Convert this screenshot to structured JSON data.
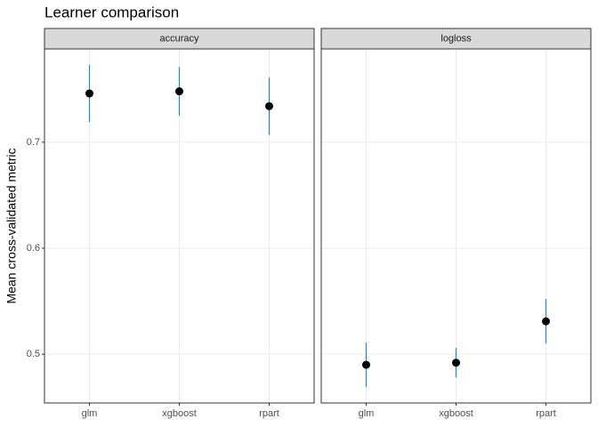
{
  "chart_data": {
    "type": "pointrange",
    "title": "Learner comparison",
    "y_label": "Mean cross-validated metric",
    "ylim": [
      0.454,
      0.788
    ],
    "yticks": [
      0.5,
      0.6,
      0.7
    ],
    "grid": true,
    "point_color": "#000000",
    "error_color": "#1f8bc6",
    "facets": [
      {
        "name": "accuracy",
        "categories": [
          "glm",
          "xgboost",
          "rpart"
        ],
        "values": [
          0.746,
          0.748,
          0.734
        ],
        "errors": [
          0.027,
          0.023,
          0.027
        ]
      },
      {
        "name": "logloss",
        "categories": [
          "glm",
          "xgboost",
          "rpart"
        ],
        "values": [
          0.49,
          0.492,
          0.531
        ],
        "errors": [
          0.021,
          0.014,
          0.021
        ]
      }
    ]
  }
}
